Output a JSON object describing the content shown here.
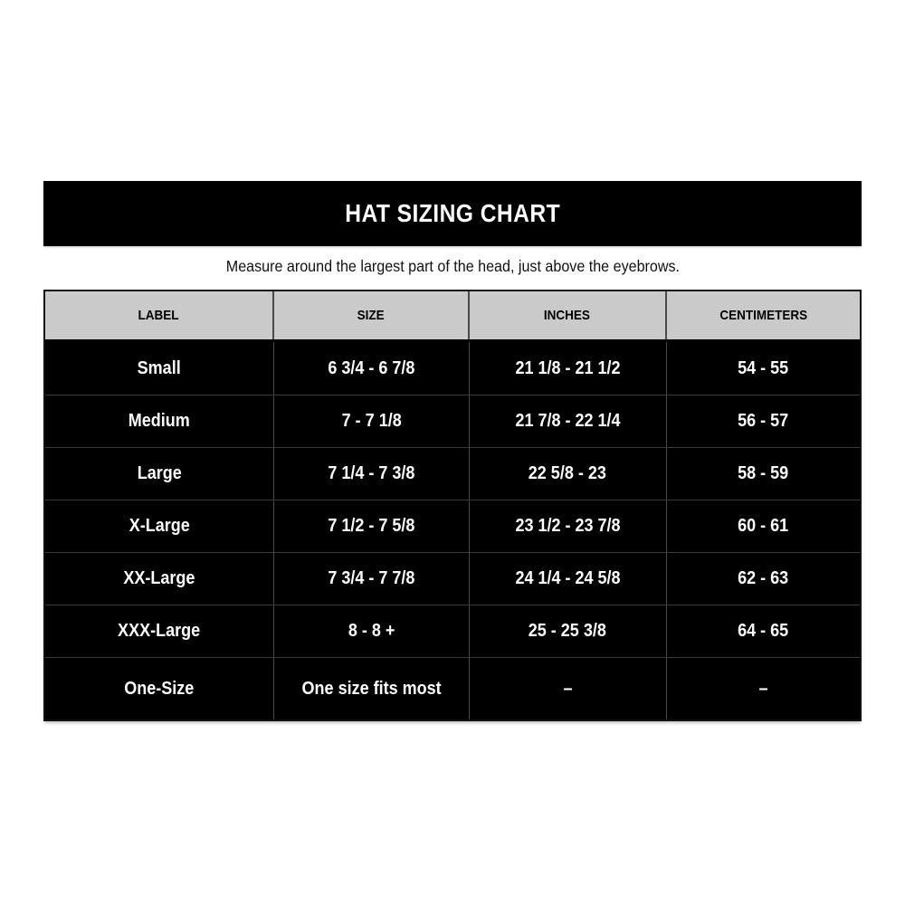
{
  "colors": {
    "banner_bg": "#000000",
    "banner_text": "#ffffff",
    "header_bg": "#cacaca",
    "header_text": "#000000",
    "row_bg": "#000000",
    "row_text": "#ffffff",
    "divider": "#4a4a4a",
    "page_bg": "#ffffff"
  },
  "chart_data": {
    "type": "table",
    "title": "HAT SIZING CHART",
    "subtitle": "Measure around the largest part of the head, just above the eyebrows.",
    "columns": [
      "LABEL",
      "SIZE",
      "INCHES",
      "CENTIMETERS"
    ],
    "rows": [
      [
        "Small",
        "6 3/4 - 6 7/8",
        "21 1/8 - 21 1/2",
        "54 - 55"
      ],
      [
        "Medium",
        "7 - 7 1/8",
        "21 7/8 - 22 1/4",
        "56 - 57"
      ],
      [
        "Large",
        "7 1/4 - 7 3/8",
        "22 5/8 - 23",
        "58 - 59"
      ],
      [
        "X-Large",
        "7 1/2 - 7 5/8",
        "23 1/2 - 23 7/8",
        "60 - 61"
      ],
      [
        "XX-Large",
        "7 3/4 - 7 7/8",
        "24 1/4 - 24 5/8",
        "62 - 63"
      ],
      [
        "XXX-Large",
        "8 - 8 +",
        "25 - 25 3/8",
        "64 - 65"
      ],
      [
        "One-Size",
        "One size fits most",
        "–",
        "–"
      ]
    ]
  }
}
